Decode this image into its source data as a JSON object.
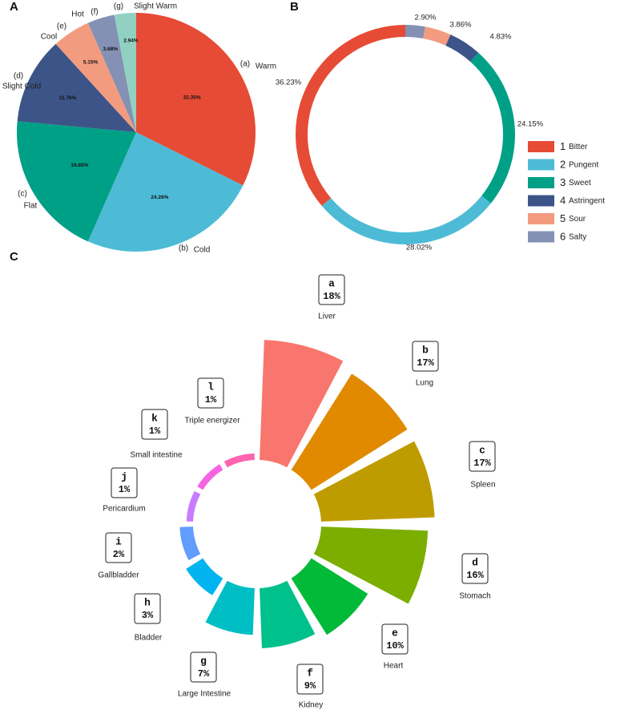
{
  "chart_data": [
    {
      "panel": "A",
      "type": "pie",
      "slices": [
        {
          "key": "(a)",
          "label": "Warm",
          "value": 32.35,
          "pct_label": "32.35%",
          "color": "#E64B35"
        },
        {
          "key": "(b)",
          "label": "Cold",
          "value": 24.26,
          "pct_label": "24.26%",
          "color": "#4DBBD5"
        },
        {
          "key": "(c)",
          "label": "Flat",
          "value": 19.85,
          "pct_label": "19.85%",
          "color": "#00A087"
        },
        {
          "key": "(d)",
          "label": "Slight Cold",
          "value": 11.76,
          "pct_label": "11.76%",
          "color": "#3C5488"
        },
        {
          "key": "(e)",
          "label": "Cool",
          "value": 5.15,
          "pct_label": "5.15%",
          "color": "#F39B7F"
        },
        {
          "key": "(f)",
          "label": "Hot",
          "value": 3.68,
          "pct_label": "3.68%",
          "color": "#8491B4"
        },
        {
          "key": "(g)",
          "label": "Slight Warm",
          "value": 2.94,
          "pct_label": "2.94%",
          "color": "#91D1C2"
        }
      ]
    },
    {
      "panel": "B",
      "type": "pie",
      "style": "donut",
      "slices": [
        {
          "num": "1",
          "label": "Bitter",
          "value": 36.23,
          "pct_label": "36.23%",
          "color": "#E64B35"
        },
        {
          "num": "2",
          "label": "Pungent",
          "value": 28.02,
          "pct_label": "28.02%",
          "color": "#4DBBD5"
        },
        {
          "num": "3",
          "label": "Sweet",
          "value": 24.15,
          "pct_label": "24.15%",
          "color": "#00A087"
        },
        {
          "num": "4",
          "label": "Astringent",
          "value": 4.83,
          "pct_label": "4.83%",
          "color": "#3C5488"
        },
        {
          "num": "5",
          "label": "Sour",
          "value": 3.86,
          "pct_label": "3.86%",
          "color": "#F39B7F"
        },
        {
          "num": "6",
          "label": "Salty",
          "value": 2.9,
          "pct_label": "2.90%",
          "color": "#8491B4"
        }
      ],
      "legend_position": "right"
    },
    {
      "panel": "C",
      "type": "bar",
      "style": "circular-bar",
      "categories": [
        {
          "letter": "a",
          "name": "Liver",
          "value": 18,
          "pct_label": "18%",
          "color": "#F8766D"
        },
        {
          "letter": "b",
          "name": "Lung",
          "value": 17,
          "pct_label": "17%",
          "color": "#E18A00"
        },
        {
          "letter": "c",
          "name": "Spleen",
          "value": 17,
          "pct_label": "17%",
          "color": "#BE9C00"
        },
        {
          "letter": "d",
          "name": "Stomach",
          "value": 16,
          "pct_label": "16%",
          "color": "#7CAE00"
        },
        {
          "letter": "e",
          "name": "Heart",
          "value": 10,
          "pct_label": "10%",
          "color": "#00BA38"
        },
        {
          "letter": "f",
          "name": "Kidney",
          "value": 9,
          "pct_label": "9%",
          "color": "#00C08B"
        },
        {
          "letter": "g",
          "name": "Large Intestine",
          "value": 7,
          "pct_label": "7%",
          "color": "#00BFC4"
        },
        {
          "letter": "h",
          "name": "Bladder",
          "value": 3,
          "pct_label": "3%",
          "color": "#00B4F0"
        },
        {
          "letter": "i",
          "name": "Gallbladder",
          "value": 2,
          "pct_label": "2%",
          "color": "#619CFF"
        },
        {
          "letter": "j",
          "name": "Pericardium",
          "value": 1,
          "pct_label": "1%",
          "color": "#C77CFF"
        },
        {
          "letter": "k",
          "name": "Small intestine",
          "value": 1,
          "pct_label": "1%",
          "color": "#F564E3"
        },
        {
          "letter": "l",
          "name": "Triple energizer",
          "value": 1,
          "pct_label": "1%",
          "color": "#FF64B0"
        }
      ]
    }
  ],
  "panels": {
    "a": "A",
    "b": "B",
    "c": "C"
  }
}
